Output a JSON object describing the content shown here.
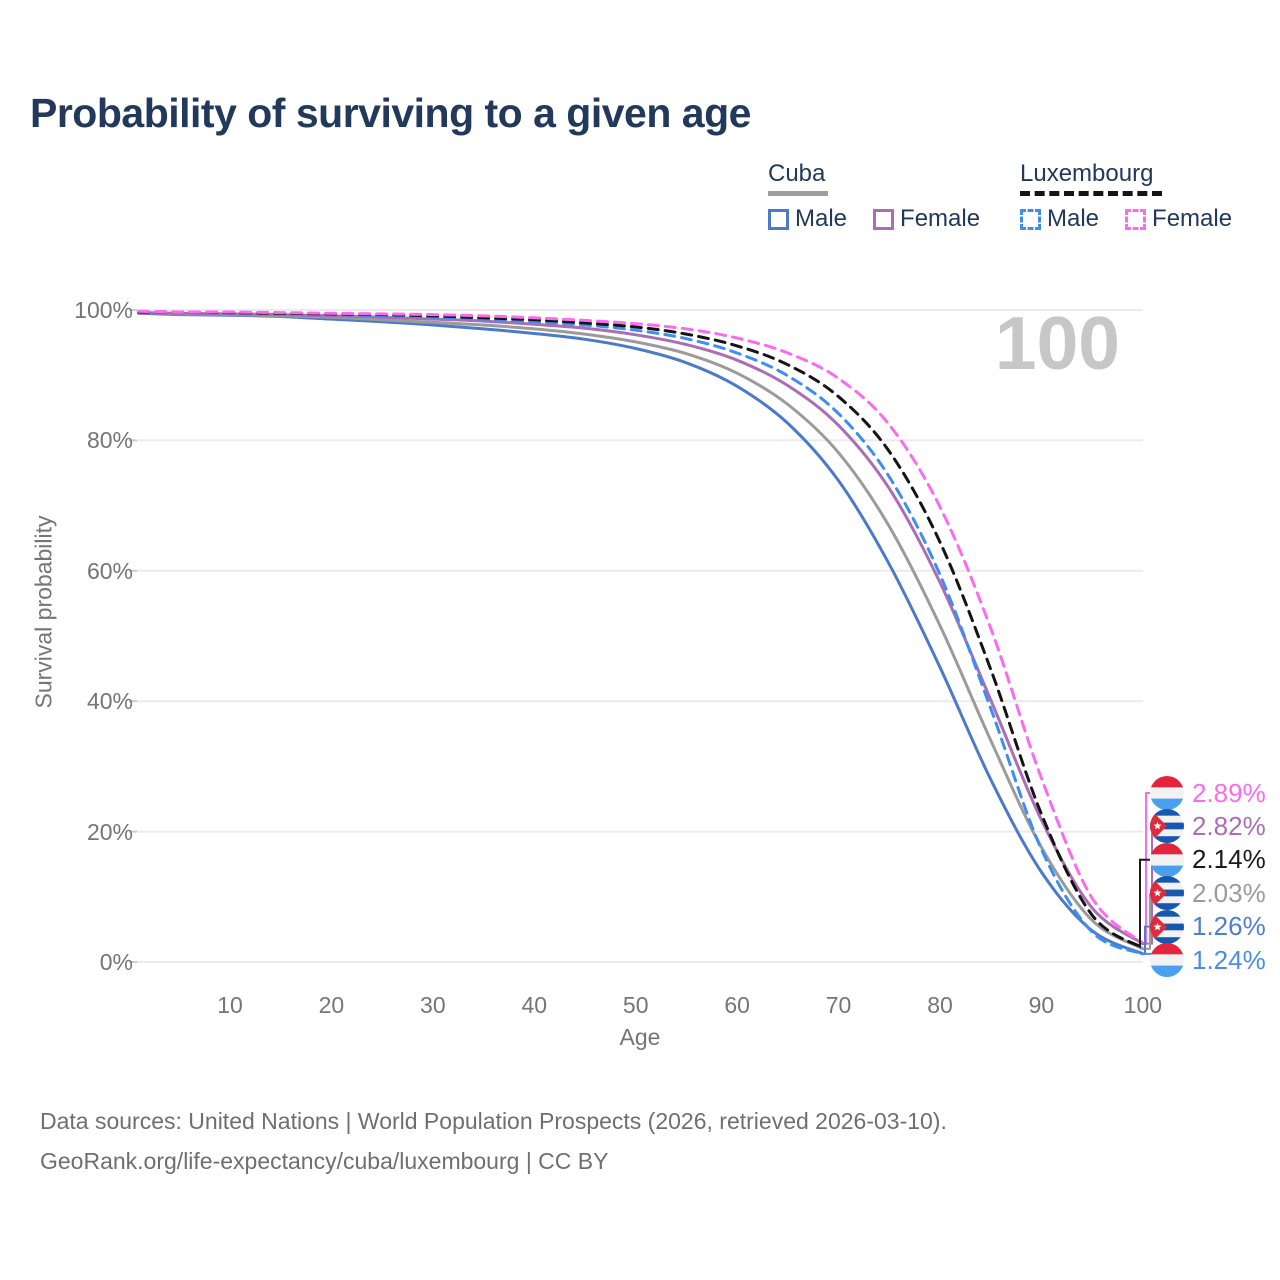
{
  "title": "Probability of surviving to a given age",
  "watermark": "100",
  "legend": {
    "groups": [
      {
        "name": "Cuba",
        "underline_style": "solid",
        "underline_color": "#9E9E9E",
        "items": [
          {
            "label": "Male",
            "color": "#4B7BC8",
            "dashed": false
          },
          {
            "label": "Female",
            "color": "#AB6DB4",
            "dashed": false
          }
        ]
      },
      {
        "name": "Luxembourg",
        "underline_style": "dashed",
        "underline_color": "#141414",
        "items": [
          {
            "label": "Male",
            "color": "#3E8EF2",
            "dashed": true
          },
          {
            "label": "Female",
            "color": "#FB6BEE",
            "dashed": true
          }
        ]
      }
    ]
  },
  "chart_data": {
    "type": "line",
    "title": "Probability of surviving to a given age",
    "xlabel": "Age",
    "ylabel": "Survival probability",
    "xlim": [
      0,
      100
    ],
    "ylim": [
      0,
      100
    ],
    "grid": true,
    "x_ticks": [
      10,
      20,
      30,
      40,
      50,
      60,
      70,
      80,
      90,
      100
    ],
    "y_tick_labels": [
      "100%",
      "80%",
      "60%",
      "40%",
      "20%",
      "0%"
    ],
    "ages": [
      1,
      5,
      10,
      15,
      20,
      25,
      30,
      35,
      40,
      45,
      50,
      55,
      60,
      65,
      70,
      75,
      80,
      85,
      90,
      95,
      100
    ],
    "series": [
      {
        "name": "Cuba male",
        "country": "Cuba",
        "sex": "Male",
        "color": "#4B7BC8",
        "dashed": false,
        "end_value_pct": 1.26,
        "values": [
          99.5,
          99.3,
          99.2,
          99.0,
          98.6,
          98.2,
          97.7,
          97.1,
          96.4,
          95.5,
          94.1,
          91.9,
          88.3,
          82.6,
          73.8,
          61.0,
          45.2,
          28.0,
          13.8,
          4.8,
          1.26
        ]
      },
      {
        "name": "Cuba (all)",
        "country": "Cuba",
        "sex": "All",
        "color": "#9B9B9B",
        "dashed": false,
        "end_value_pct": 2.03,
        "values": [
          99.6,
          99.4,
          99.3,
          99.1,
          98.9,
          98.5,
          98.1,
          97.7,
          97.1,
          96.3,
          95.1,
          93.3,
          90.3,
          85.5,
          78.1,
          66.8,
          51.6,
          34.0,
          17.6,
          6.4,
          2.03
        ]
      },
      {
        "name": "Cuba female",
        "country": "Cuba",
        "sex": "Female",
        "color": "#AB6DB4",
        "dashed": false,
        "end_value_pct": 2.82,
        "values": [
          99.6,
          99.5,
          99.4,
          99.3,
          99.1,
          98.9,
          98.6,
          98.3,
          97.8,
          97.2,
          96.2,
          94.7,
          92.3,
          88.4,
          82.3,
          72.6,
          58.2,
          40.2,
          21.8,
          8.3,
          2.82
        ]
      },
      {
        "name": "Luxembourg male",
        "country": "Luxembourg",
        "sex": "Male",
        "color": "#3E8EF2",
        "dashed": true,
        "end_value_pct": 1.24,
        "values": [
          99.7,
          99.6,
          99.6,
          99.5,
          99.3,
          99.1,
          98.9,
          98.6,
          98.2,
          97.7,
          96.9,
          95.6,
          93.4,
          89.9,
          84.1,
          74.4,
          59.4,
          38.9,
          17.3,
          4.6,
          1.24
        ]
      },
      {
        "name": "Luxembourg (all)",
        "country": "Luxembourg",
        "sex": "All",
        "color": "#141414",
        "dashed": true,
        "end_value_pct": 2.14,
        "values": [
          99.7,
          99.7,
          99.6,
          99.5,
          99.4,
          99.3,
          99.1,
          98.8,
          98.5,
          98.0,
          97.4,
          96.3,
          94.5,
          91.6,
          86.7,
          78.3,
          64.4,
          44.9,
          22.7,
          7.2,
          2.14
        ]
      },
      {
        "name": "Luxembourg female",
        "country": "Luxembourg",
        "sex": "Female",
        "color": "#FB6BEE",
        "dashed": true,
        "end_value_pct": 2.89,
        "values": [
          99.8,
          99.7,
          99.7,
          99.6,
          99.5,
          99.4,
          99.3,
          99.1,
          98.8,
          98.4,
          97.9,
          97.1,
          95.7,
          93.4,
          89.5,
          82.4,
          69.8,
          51.2,
          28.2,
          9.8,
          2.89
        ]
      }
    ],
    "end_labels": [
      {
        "value": "2.89%",
        "value_pct": 2.89,
        "flag": "lu",
        "color": "#FB6BEE",
        "series_index": 5
      },
      {
        "value": "2.82%",
        "value_pct": 2.82,
        "flag": "cu",
        "color": "#AB6DB4",
        "series_index": 2
      },
      {
        "value": "2.14%",
        "value_pct": 2.14,
        "flag": "lu",
        "color": "#1A1A1A",
        "series_index": 4
      },
      {
        "value": "2.03%",
        "value_pct": 2.03,
        "flag": "cu",
        "color": "#9B9B9B",
        "series_index": 1
      },
      {
        "value": "1.26%",
        "value_pct": 1.26,
        "flag": "cu",
        "color": "#4F7DD0",
        "series_index": 0
      },
      {
        "value": "1.24%",
        "value_pct": 1.24,
        "flag": "lu",
        "color": "#4A8CE8",
        "series_index": 3
      }
    ]
  },
  "flag_colors": {
    "lu": {
      "top": "#E4243B",
      "mid": "#F2F2F2",
      "bottom": "#4B9FEF"
    },
    "cu": {
      "blue": "#1658AE",
      "white": "#F2F2F2",
      "red": "#DD2C3E",
      "star": "#FFFFFF"
    }
  },
  "footer": {
    "line1": "Data sources: United Nations | World Population Prospects (2026, retrieved 2026-03-10).",
    "line2": "GeoRank.org/life-expectancy/cuba/luxembourg | CC BY"
  }
}
